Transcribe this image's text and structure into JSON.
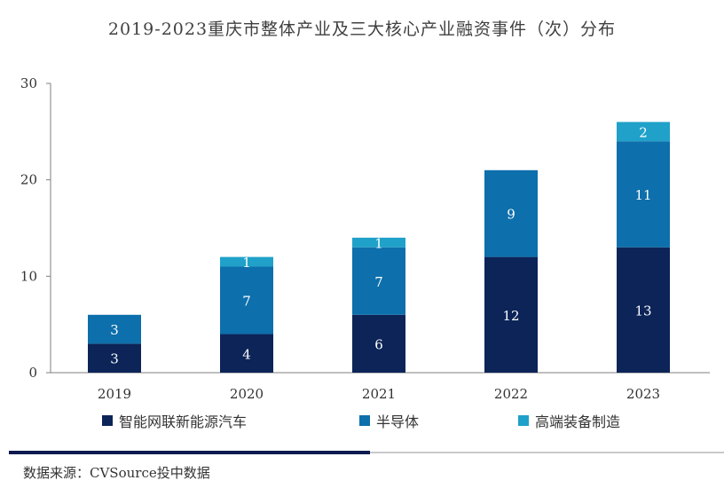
{
  "chart_data": {
    "type": "bar",
    "stacked": true,
    "title": "2019-2023重庆市整体产业及三大核心产业融资事件（次）分布",
    "categories": [
      "2019",
      "2020",
      "2021",
      "2022",
      "2023"
    ],
    "series": [
      {
        "name": "智能网联新能源汽车",
        "values": [
          3,
          4,
          6,
          12,
          13
        ],
        "color": "#0c2458"
      },
      {
        "name": "半导体",
        "values": [
          3,
          7,
          7,
          9,
          11
        ],
        "color": "#0d6fab"
      },
      {
        "name": "高端装备制造",
        "values": [
          0,
          1,
          1,
          0,
          2
        ],
        "color": "#1fa1c9"
      }
    ],
    "ylim": [
      0,
      30
    ],
    "yticks": [
      0,
      10,
      20,
      30
    ],
    "xlabel": "",
    "ylabel": "",
    "legend_position": "bottom",
    "grid": false
  },
  "source_text": "数据来源：CVSource投中数据"
}
